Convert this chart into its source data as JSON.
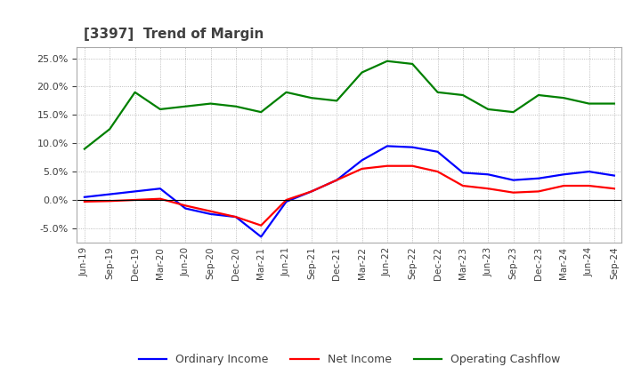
{
  "title": "[3397]  Trend of Margin",
  "x_labels": [
    "Jun-19",
    "Sep-19",
    "Dec-19",
    "Mar-20",
    "Jun-20",
    "Sep-20",
    "Dec-20",
    "Mar-21",
    "Jun-21",
    "Sep-21",
    "Dec-21",
    "Mar-22",
    "Jun-22",
    "Sep-22",
    "Dec-22",
    "Mar-23",
    "Jun-23",
    "Sep-23",
    "Dec-23",
    "Mar-24",
    "Jun-24",
    "Sep-24"
  ],
  "ordinary_income": [
    0.5,
    1.0,
    1.5,
    2.0,
    -1.5,
    -2.5,
    -3.0,
    -6.5,
    -0.3,
    1.5,
    3.5,
    7.0,
    9.5,
    9.3,
    8.5,
    4.8,
    4.5,
    3.5,
    3.8,
    4.5,
    5.0,
    4.3
  ],
  "net_income": [
    -0.3,
    -0.2,
    0.0,
    0.2,
    -1.0,
    -2.0,
    -3.0,
    -4.5,
    0.0,
    1.5,
    3.5,
    5.5,
    6.0,
    6.0,
    5.0,
    2.5,
    2.0,
    1.3,
    1.5,
    2.5,
    2.5,
    2.0
  ],
  "operating_cashflow": [
    9.0,
    12.5,
    19.0,
    16.0,
    16.5,
    17.0,
    16.5,
    15.5,
    19.0,
    18.0,
    17.5,
    22.5,
    24.5,
    24.0,
    19.0,
    18.5,
    16.0,
    15.5,
    18.5,
    18.0,
    17.0,
    17.0
  ],
  "ylim": [
    -7.5,
    27.0
  ],
  "yticks": [
    -5.0,
    0.0,
    5.0,
    10.0,
    15.0,
    20.0,
    25.0
  ],
  "ordinary_income_color": "#0000FF",
  "net_income_color": "#FF0000",
  "operating_cashflow_color": "#008000",
  "background_color": "#FFFFFF",
  "grid_color": "#AAAAAA",
  "title_color": "#404040",
  "legend_labels": [
    "Ordinary Income",
    "Net Income",
    "Operating Cashflow"
  ]
}
